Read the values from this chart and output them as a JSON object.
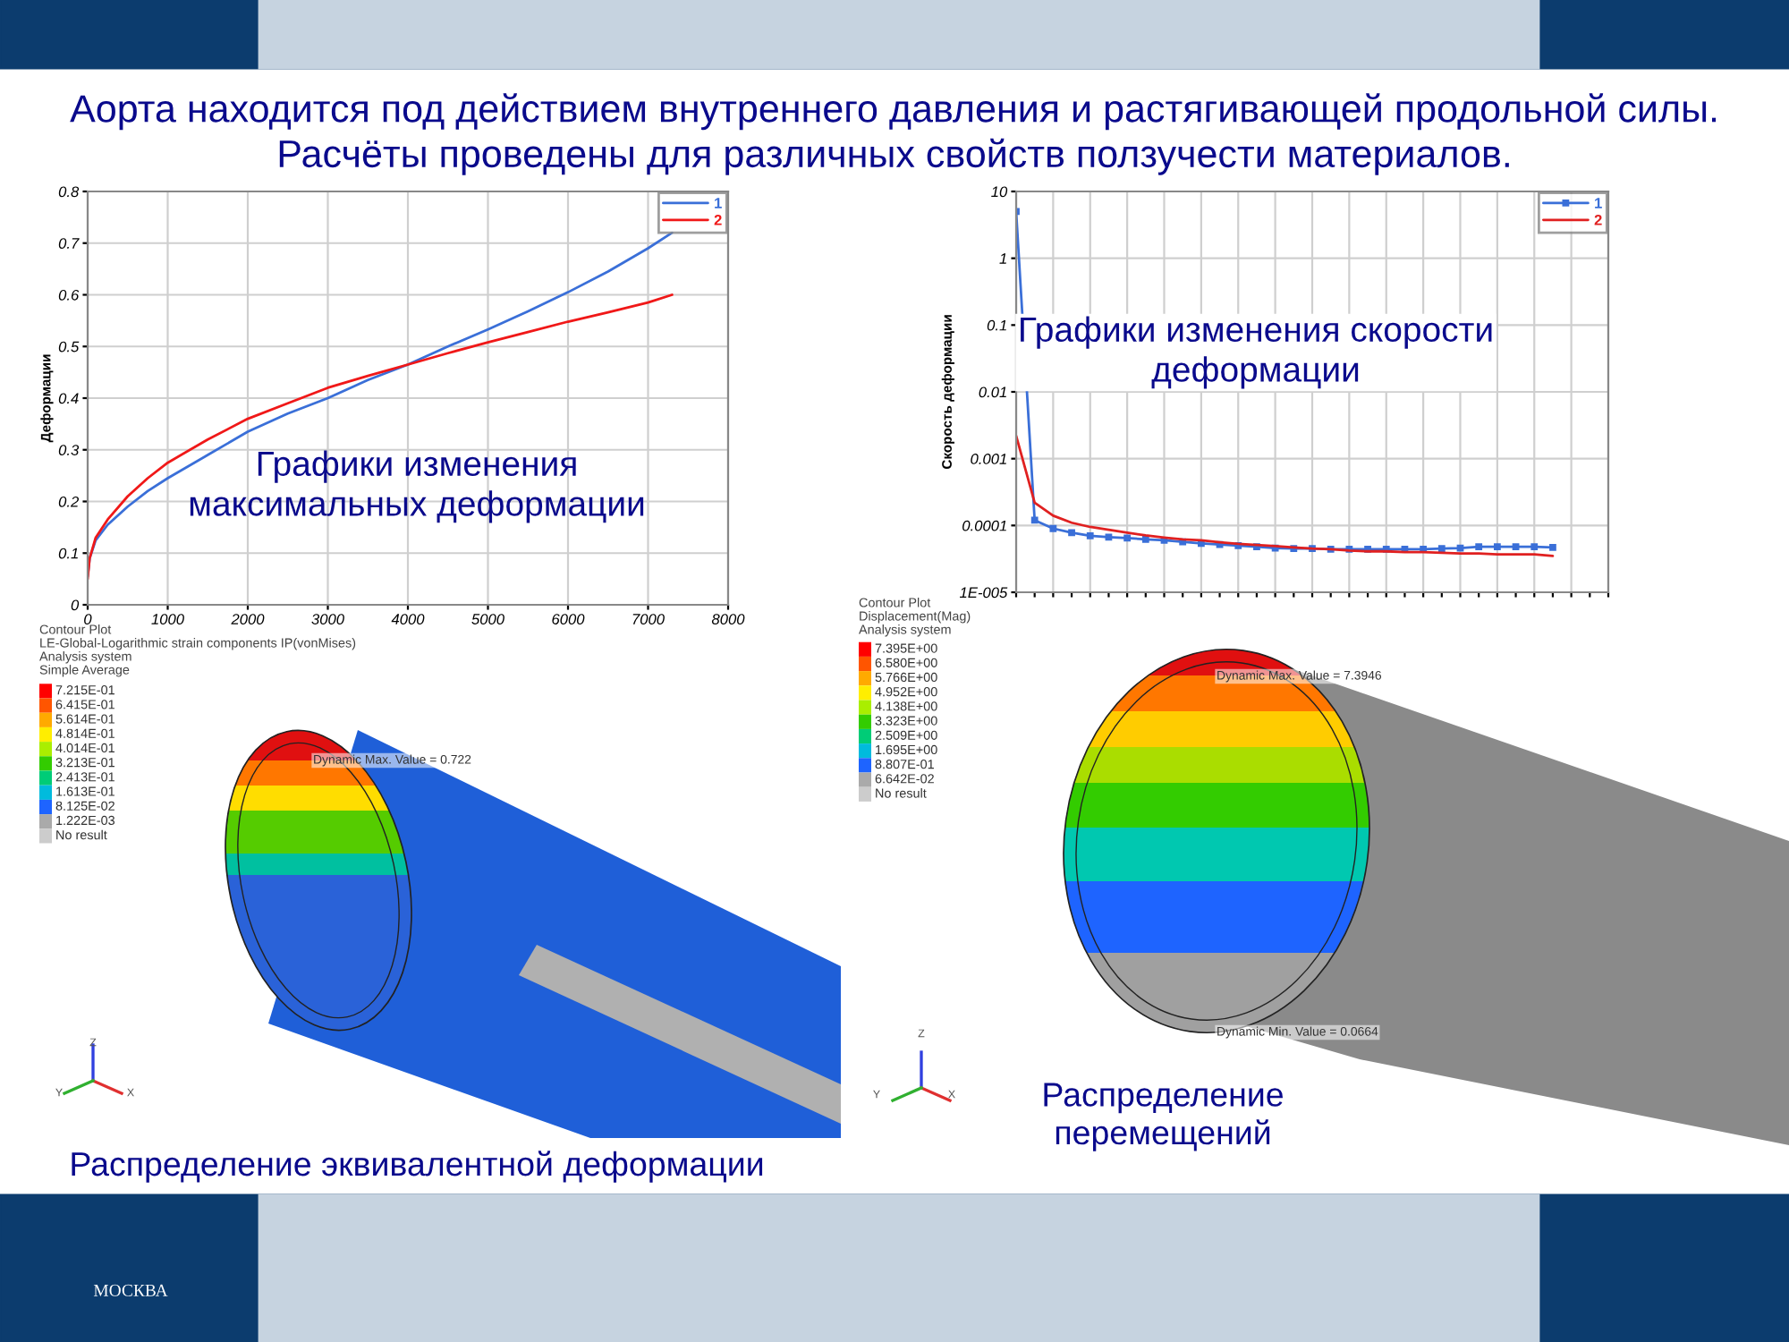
{
  "chart_data": [
    {
      "type": "other",
      "title": "Аорта находится под действием внутреннего давления и растягивающей продольной силы.\nРасчёты проведены для различных свойств ползучести материалов.",
      "annotations": [
        "МОСКВА"
      ]
    },
    {
      "type": "line",
      "ylabel": "Деформации",
      "annotations": [
        "Графики изменения\nмаксимальных деформации"
      ],
      "xlim": [
        0,
        8000
      ],
      "xticks": [
        0,
        1000,
        2000,
        3000,
        4000,
        5000,
        6000,
        7000,
        8000
      ],
      "ylim": [
        0,
        0.8
      ],
      "yticks": [
        0,
        0.1,
        0.2,
        0.3,
        0.4,
        0.5,
        0.6,
        0.7,
        0.8
      ],
      "grid": true,
      "legend": "top right",
      "x": [
        0,
        25,
        100,
        250,
        500,
        750,
        1000,
        1500,
        2000,
        2500,
        3000,
        3500,
        4000,
        4500,
        5000,
        5500,
        6000,
        6500,
        7000,
        7300
      ],
      "series": [
        {
          "name": "1",
          "color": "#3a6fd8",
          "values": [
            0.055,
            0.09,
            0.125,
            0.155,
            0.19,
            0.22,
            0.245,
            0.29,
            0.335,
            0.37,
            0.4,
            0.435,
            0.465,
            0.5,
            0.533,
            0.568,
            0.605,
            0.645,
            0.69,
            0.72
          ]
        },
        {
          "name": "2",
          "color": "#f01818",
          "values": [
            0.05,
            0.09,
            0.13,
            0.165,
            0.21,
            0.245,
            0.275,
            0.32,
            0.36,
            0.39,
            0.42,
            0.443,
            0.465,
            0.487,
            0.508,
            0.528,
            0.548,
            0.566,
            0.585,
            0.6
          ]
        }
      ]
    },
    {
      "type": "line",
      "ylabel": "Скорость деформации",
      "annotations": [
        "Графики изменения скорости\nдеформации"
      ],
      "log": "y",
      "ylim": [
        1e-05,
        10
      ],
      "yticks": [
        {
          "value": 1e-05,
          "label": "1E-005"
        },
        0.0001,
        0.001,
        0.01,
        0.1,
        1,
        10
      ],
      "grid": true,
      "legend": "top right",
      "tick_labels": "y",
      "categories": [
        null,
        null,
        null,
        null,
        null,
        null,
        null,
        null,
        null,
        null,
        null,
        null,
        null,
        null,
        null,
        null,
        null,
        null,
        null,
        null,
        null,
        null,
        null,
        null,
        null,
        null,
        null,
        null,
        null,
        null,
        null,
        null,
        null
      ],
      "series": [
        {
          "name": "1",
          "color": "#3a6fd8",
          "marker": "square",
          "values": [
            5,
            0.00012,
            9e-05,
            7.8e-05,
            7e-05,
            6.7e-05,
            6.5e-05,
            6.2e-05,
            6e-05,
            5.7e-05,
            5.4e-05,
            5.2e-05,
            5e-05,
            4.8e-05,
            4.6e-05,
            4.5e-05,
            4.5e-05,
            4.4e-05,
            4.4e-05,
            4.4e-05,
            4.4e-05,
            4.4e-05,
            4.4e-05,
            4.5e-05,
            4.6e-05,
            4.8e-05,
            4.8e-05,
            4.8e-05,
            4.8e-05,
            4.7e-05,
            null,
            null,
            null
          ]
        },
        {
          "name": "2",
          "color": "#e02020",
          "values": [
            0.0022,
            0.00022,
            0.00014,
            0.00011,
            9.5e-05,
            8.6e-05,
            7.8e-05,
            7.1e-05,
            6.6e-05,
            6.2e-05,
            6e-05,
            5.6e-05,
            5.3e-05,
            5.1e-05,
            4.9e-05,
            4.7e-05,
            4.5e-05,
            4.4e-05,
            4.2e-05,
            4.1e-05,
            4.1e-05,
            4e-05,
            4e-05,
            3.9e-05,
            3.8e-05,
            3.8e-05,
            3.7e-05,
            3.7e-05,
            3.7e-05,
            3.5e-05,
            null,
            null,
            null
          ]
        }
      ]
    },
    {
      "type": "other",
      "legend_title": "Contour Plot\nLE-Global-Logarithmic strain components IP(vonMises)\nAnalysis system\nSimple Average",
      "categories": [
        "7.215E-01",
        "6.415E-01",
        "5.614E-01",
        "4.814E-01",
        "4.014E-01",
        "3.213E-01",
        "2.413E-01",
        "1.613E-01",
        "8.125E-02",
        "1.222E-03",
        "No result"
      ],
      "colors": [
        "#ff0000",
        "#ff5500",
        "#ffaa00",
        "#ffee00",
        "#aaee00",
        "#33cc00",
        "#00cc77",
        "#00bbdd",
        "#1e64ff",
        "#aaaaaa",
        "#cccccc"
      ],
      "annotations": [
        "Dynamic Max. Value = 0.722",
        "Z",
        "Y",
        "X",
        "Распределение эквивалентной деформации"
      ]
    },
    {
      "type": "other",
      "legend_title": "Contour Plot\nDisplacement(Mag)\nAnalysis system",
      "categories": [
        "7.395E+00",
        "6.580E+00",
        "5.766E+00",
        "4.952E+00",
        "4.138E+00",
        "3.323E+00",
        "2.509E+00",
        "1.695E+00",
        "8.807E-01",
        "6.642E-02",
        "No result"
      ],
      "colors": [
        "#ff0000",
        "#ff5500",
        "#ffaa00",
        "#ffee00",
        "#aaee00",
        "#33cc00",
        "#00cc77",
        "#00bbdd",
        "#1e64ff",
        "#aaaaaa",
        "#cccccc"
      ],
      "annotations": [
        "Dynamic Max. Value = 7.3946",
        "Dynamic Min. Value = 0.0664",
        "Z",
        "Y",
        "X",
        "Распределение\nперемещений"
      ]
    }
  ]
}
